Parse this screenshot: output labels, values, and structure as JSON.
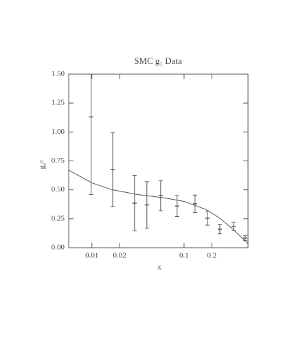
{
  "chart_data": {
    "type": "scatter",
    "title": "SMC g₁ Data",
    "x_label": "x",
    "y_label": "g₁ᵖ",
    "x_scale": "log",
    "xlim": [
      0.0056,
      0.494
    ],
    "ylim": [
      0,
      1.5
    ],
    "xticks": [
      0.01,
      0.02,
      0.1,
      0.2
    ],
    "yticks": [
      {
        "value": 0,
        "label": "0.00"
      },
      {
        "value": 0.25,
        "label": "0.25"
      },
      {
        "value": 0.5,
        "label": "0.50"
      },
      {
        "value": 0.75,
        "label": "0.75"
      },
      {
        "value": 1,
        "label": "1.00"
      },
      {
        "value": 1.25,
        "label": "1.25"
      },
      {
        "value": 1.5,
        "label": "1.50"
      }
    ],
    "color": "#555555",
    "series": [
      {
        "type": "errorbar",
        "color": "#555555",
        "x": [
          0.0098,
          0.0168,
          0.029,
          0.0395,
          0.0557,
          0.084,
          0.1315,
          0.179,
          0.244,
          0.344,
          0.46
        ],
        "values": [
          1.13,
          0.675,
          0.385,
          0.37,
          0.45,
          0.36,
          0.38,
          0.255,
          0.16,
          0.185,
          0.083
        ],
        "errors": [
          0.67,
          0.32,
          0.24,
          0.2,
          0.13,
          0.09,
          0.075,
          0.06,
          0.04,
          0.035,
          0.02
        ]
      },
      {
        "type": "line",
        "color": "#555555",
        "x": [
          0.0056,
          0.01,
          0.0168,
          0.031,
          0.062,
          0.1,
          0.173,
          0.244,
          0.344,
          0.494
        ],
        "values": [
          0.67,
          0.56,
          0.5,
          0.46,
          0.43,
          0.4,
          0.33,
          0.255,
          0.155,
          0.035
        ]
      }
    ]
  }
}
